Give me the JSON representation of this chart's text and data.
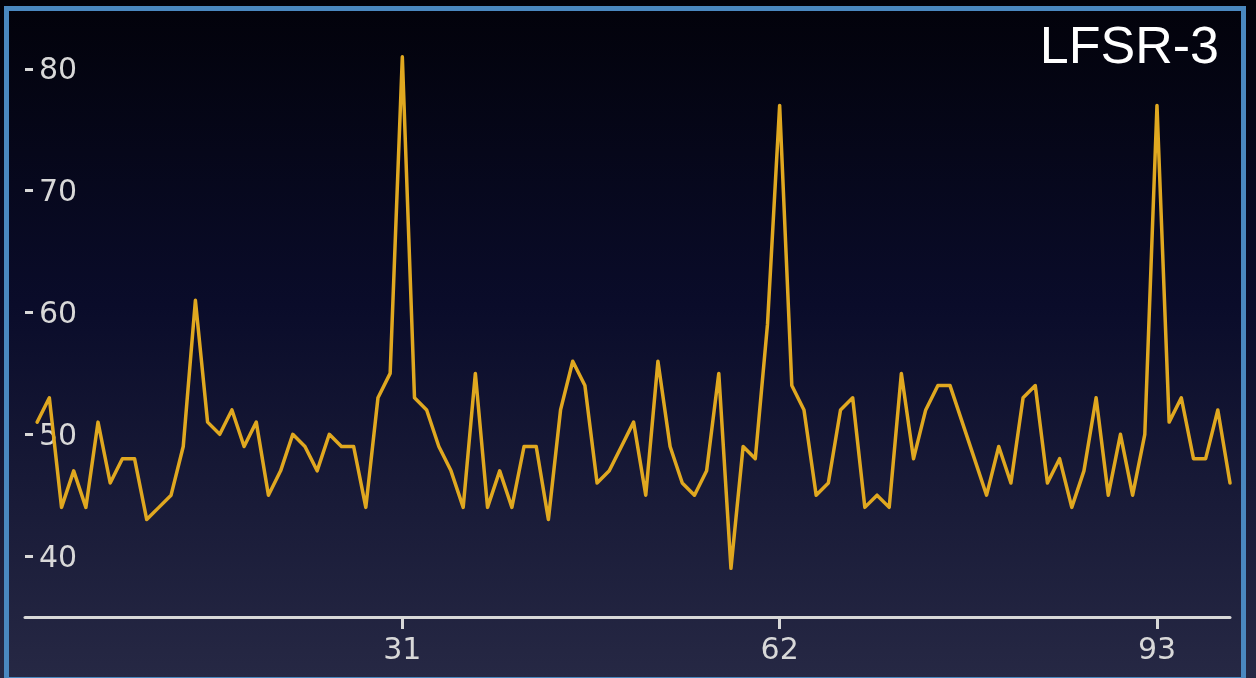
{
  "chart_data": {
    "type": "line",
    "title": "LFSR-3",
    "x": [
      1,
      2,
      3,
      4,
      5,
      6,
      7,
      8,
      9,
      10,
      11,
      12,
      13,
      14,
      15,
      16,
      17,
      18,
      19,
      20,
      21,
      22,
      23,
      24,
      25,
      26,
      27,
      28,
      29,
      30,
      31,
      32,
      33,
      34,
      35,
      36,
      37,
      38,
      39,
      40,
      41,
      42,
      43,
      44,
      45,
      46,
      47,
      48,
      49,
      50,
      51,
      52,
      53,
      54,
      55,
      56,
      57,
      58,
      59,
      60,
      61,
      62,
      63,
      64,
      65,
      66,
      67,
      68,
      69,
      70,
      71,
      72,
      73,
      74,
      75,
      76,
      77,
      78,
      79,
      80,
      81,
      82,
      83,
      84,
      85,
      86,
      87,
      88,
      89,
      90,
      91,
      92,
      93,
      94,
      95,
      96,
      97,
      98,
      99
    ],
    "series": [
      {
        "color": "#e0a820",
        "values": [
          51,
          53,
          44,
          47,
          44,
          51,
          46,
          48,
          48,
          43,
          44,
          45,
          49,
          61,
          51,
          50,
          52,
          49,
          51,
          45,
          47,
          50,
          49,
          47,
          50,
          49,
          49,
          44,
          53,
          55,
          81,
          53,
          52,
          49,
          47,
          44,
          55,
          44,
          47,
          44,
          49,
          49,
          43,
          52,
          56,
          54,
          46,
          47,
          49,
          51,
          45,
          56,
          49,
          46,
          45,
          47,
          55,
          39,
          49,
          48,
          59,
          77,
          54,
          52,
          45,
          46,
          52,
          53,
          44,
          45,
          44,
          55,
          48,
          52,
          54,
          54,
          51,
          48,
          45,
          49,
          46,
          53,
          54,
          46,
          48,
          44,
          47,
          53,
          45,
          50,
          45,
          50,
          77,
          51,
          53,
          48,
          48,
          52,
          46
        ]
      }
    ],
    "xlim": [
      0,
      99
    ],
    "xticks": [
      31,
      62,
      93
    ],
    "ylim": [
      35,
      85
    ],
    "yticks": [
      40,
      50,
      60,
      70,
      80
    ],
    "grid": false,
    "marker": "none",
    "line_style": "solid"
  }
}
